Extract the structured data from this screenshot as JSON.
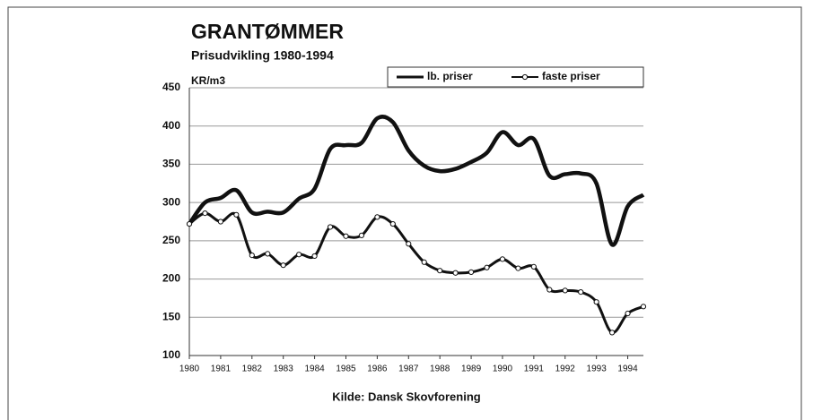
{
  "chart_data": {
    "type": "line",
    "title": "GRANTØMMER",
    "subtitle": "Prisudvikling 1980-1994",
    "y_label": "KR/m3",
    "source": "Kilde: Dansk Skovforening",
    "x": [
      1980,
      1980.5,
      1981,
      1981.5,
      1982,
      1982.5,
      1983,
      1983.5,
      1984,
      1984.5,
      1985,
      1985.5,
      1986,
      1986.5,
      1987,
      1987.5,
      1988,
      1988.5,
      1989,
      1989.5,
      1990,
      1990.5,
      1991,
      1991.5,
      1992,
      1992.5,
      1993,
      1993.5,
      1994,
      1994.5
    ],
    "series": [
      {
        "name": "lb. priser",
        "color": "#111111",
        "markers": false,
        "values": [
          272,
          300,
          306,
          316,
          287,
          288,
          287,
          305,
          318,
          370,
          375,
          378,
          410,
          405,
          368,
          348,
          341,
          344,
          353,
          365,
          392,
          375,
          383,
          335,
          337,
          338,
          325,
          245,
          295,
          310
        ]
      },
      {
        "name": "faste priser",
        "color": "#111111",
        "markers": true,
        "values": [
          272,
          286,
          275,
          284,
          231,
          233,
          218,
          232,
          230,
          268,
          256,
          257,
          281,
          272,
          246,
          222,
          211,
          208,
          209,
          215,
          226,
          214,
          216,
          186,
          185,
          183,
          170,
          130,
          155,
          164
        ]
      }
    ],
    "xlim": [
      1980,
      1994.5
    ],
    "xticks": [
      1980,
      1981,
      1982,
      1983,
      1984,
      1985,
      1986,
      1987,
      1988,
      1989,
      1990,
      1991,
      1992,
      1993,
      1994
    ],
    "ylim": [
      100,
      450
    ],
    "yticks": [
      100,
      150,
      200,
      250,
      300,
      350,
      400,
      450
    ],
    "grid": true,
    "legend": "top-right"
  }
}
